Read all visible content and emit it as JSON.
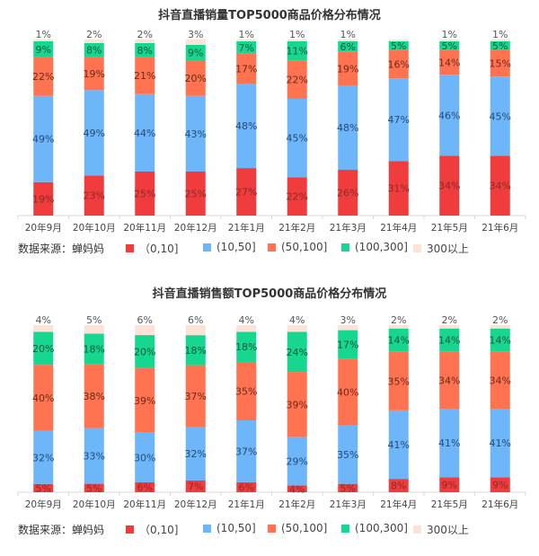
{
  "source_label": "数据来源：蝉妈妈",
  "legend": [
    {
      "label": "（0,10]",
      "color": "#f03c3c"
    },
    {
      "label": "(10,50]",
      "color": "#6cb6f9"
    },
    {
      "label": "(50,100]",
      "color": "#ff7350"
    },
    {
      "label": "(100,300]",
      "color": "#17d68f"
    },
    {
      "label": "300以上",
      "color": "#fde2d8"
    }
  ],
  "chart_data": [
    {
      "type": "bar",
      "stacked": true,
      "title": "抖音直播销量TOP5000商品价格分布情况",
      "categories": [
        "20年9月",
        "20年10月",
        "20年11月",
        "20年12月",
        "21年1月",
        "21年2月",
        "21年3月",
        "21年4月",
        "21年5月",
        "21年6月"
      ],
      "series": [
        {
          "name": "(0,10]",
          "values": [
            19,
            23,
            25,
            25,
            27,
            22,
            26,
            31,
            34,
            34
          ]
        },
        {
          "name": "(10,50]",
          "values": [
            49,
            49,
            44,
            43,
            48,
            45,
            48,
            47,
            46,
            45
          ]
        },
        {
          "name": "(50,100]",
          "values": [
            22,
            19,
            21,
            20,
            17,
            22,
            19,
            16,
            14,
            15
          ]
        },
        {
          "name": "(100,300]",
          "values": [
            9,
            8,
            8,
            9,
            7,
            11,
            6,
            5,
            5,
            5
          ]
        },
        {
          "name": "300以上",
          "values": [
            1,
            2,
            2,
            3,
            1,
            1,
            1,
            1,
            1,
            1
          ]
        }
      ],
      "labels": {
        "(0,10]": [
          "19%",
          "23%",
          "25%",
          "25%",
          "27%",
          "22%",
          "26%",
          "31%",
          "34%",
          "34%"
        ],
        "(10,50]": [
          "49%",
          "49%",
          "44%",
          "43%",
          "48%",
          "45%",
          "48%",
          "47%",
          "46%",
          "45%"
        ],
        "(50,100]": [
          "22%",
          "19%",
          "21%",
          "20%",
          "17%",
          "22%",
          "19%",
          "16%",
          "14%",
          "15%"
        ],
        "(100,300]": [
          "9%",
          "8%",
          "8%",
          "9%",
          "7%",
          "11%",
          "6%",
          "5%",
          "5%",
          "5%"
        ],
        "300以上": [
          "1%",
          "2%",
          "2%",
          "3%",
          "1%",
          "1%",
          "1%",
          "",
          "1%",
          "1%"
        ]
      },
      "ylim": [
        0,
        100
      ],
      "legend_position": "bottom"
    },
    {
      "type": "bar",
      "stacked": true,
      "title": "抖音直播销售额TOP5000商品价格分布情况",
      "categories": [
        "20年9月",
        "20年10月",
        "20年11月",
        "20年12月",
        "21年1月",
        "21年2月",
        "21年3月",
        "21年4月",
        "21年5月",
        "21年6月"
      ],
      "series": [
        {
          "name": "(0,10]",
          "values": [
            5,
            5,
            6,
            7,
            6,
            4,
            5,
            8,
            9,
            9
          ]
        },
        {
          "name": "(10,50]",
          "values": [
            32,
            33,
            30,
            32,
            37,
            29,
            35,
            41,
            41,
            41
          ]
        },
        {
          "name": "(50,100]",
          "values": [
            40,
            38,
            39,
            37,
            35,
            39,
            40,
            35,
            34,
            34
          ]
        },
        {
          "name": "(100,300]",
          "values": [
            20,
            18,
            20,
            18,
            18,
            24,
            17,
            14,
            14,
            14
          ]
        },
        {
          "name": "300以上",
          "values": [
            4,
            5,
            6,
            6,
            4,
            4,
            3,
            2,
            2,
            2
          ]
        }
      ],
      "labels": {
        "(0,10]": [
          "5%",
          "5%",
          "6%",
          "7%",
          "6%",
          "4%",
          "5%",
          "8%",
          "9%",
          "9%"
        ],
        "(10,50]": [
          "32%",
          "33%",
          "30%",
          "32%",
          "37%",
          "29%",
          "35%",
          "41%",
          "41%",
          "41%"
        ],
        "(50,100]": [
          "40%",
          "38%",
          "39%",
          "37%",
          "35%",
          "39%",
          "40%",
          "35%",
          "34%",
          "34%"
        ],
        "(100,300]": [
          "20%",
          "18%",
          "20%",
          "18%",
          "18%",
          "24%",
          "17%",
          "14%",
          "14%",
          "14%"
        ],
        "300以上": [
          "4%",
          "5%",
          "6%",
          "6%",
          "4%",
          "4%",
          "3%",
          "2%",
          "2%",
          "2%"
        ]
      },
      "ylim": [
        0,
        100
      ],
      "legend_position": "bottom"
    }
  ]
}
